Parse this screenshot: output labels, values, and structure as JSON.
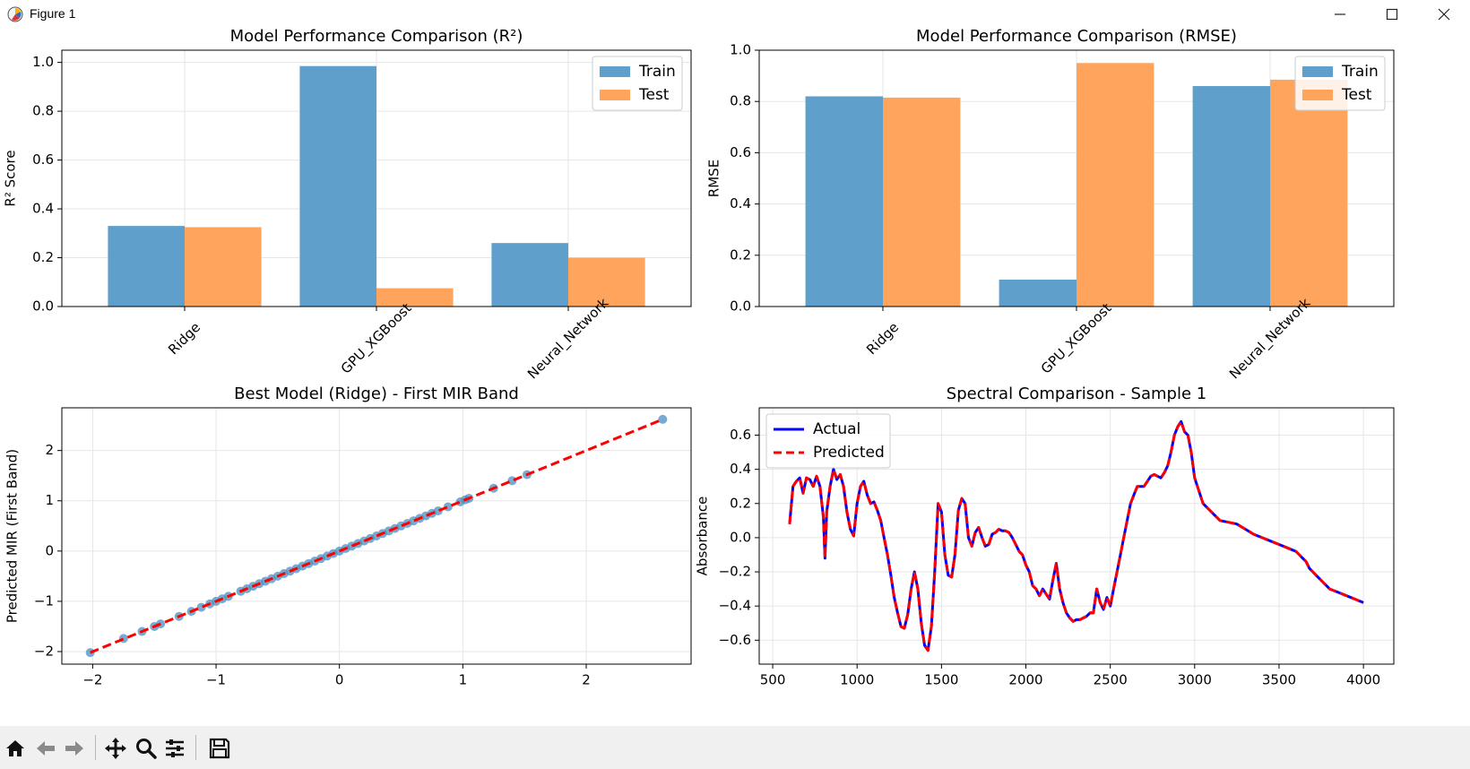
{
  "window": {
    "title": "Figure 1",
    "icon": "matplotlib-icon",
    "controls": [
      "minimize-icon",
      "maximize-icon",
      "close-icon"
    ]
  },
  "toolbar": {
    "buttons": [
      "home-icon",
      "back-icon",
      "forward-icon",
      "pan-icon",
      "zoom-icon",
      "configure-subplots-icon",
      "save-icon"
    ]
  },
  "colors": {
    "train": "#5f9fcb",
    "test": "#fea45c",
    "actual": "#0000ff",
    "predicted": "#ff0000",
    "scatter": "#4a8fc2",
    "grid": "#e6e6e6"
  },
  "chart_data": [
    {
      "type": "bar",
      "title": "Model Performance Comparison (R²)",
      "xlabel": "",
      "ylabel": "R² Score",
      "categories": [
        "Ridge",
        "GPU_XGBoost",
        "Neural_Network"
      ],
      "series": [
        {
          "name": "Train",
          "values": [
            0.33,
            0.985,
            0.26
          ]
        },
        {
          "name": "Test",
          "values": [
            0.325,
            0.075,
            0.2
          ]
        }
      ],
      "ylim": [
        0,
        1.05
      ],
      "yticks": [
        0.0,
        0.2,
        0.4,
        0.6,
        0.8,
        1.0
      ],
      "ytick_labels": [
        "0.0",
        "0.2",
        "0.4",
        "0.6",
        "0.8",
        "1.0"
      ],
      "grid": true,
      "legend": "top-right"
    },
    {
      "type": "bar",
      "title": "Model Performance Comparison (RMSE)",
      "xlabel": "",
      "ylabel": "RMSE",
      "categories": [
        "Ridge",
        "GPU_XGBoost",
        "Neural_Network"
      ],
      "series": [
        {
          "name": "Train",
          "values": [
            0.82,
            0.105,
            0.86
          ]
        },
        {
          "name": "Test",
          "values": [
            0.815,
            0.95,
            0.885
          ]
        }
      ],
      "ylim": [
        0,
        1.0
      ],
      "yticks": [
        0.0,
        0.2,
        0.4,
        0.6,
        0.8,
        1.0
      ],
      "ytick_labels": [
        "0.0",
        "0.2",
        "0.4",
        "0.6",
        "0.8",
        "1.0"
      ],
      "grid": true,
      "legend": "top-right"
    },
    {
      "type": "scatter",
      "title": "Best Model (Ridge) - First MIR Band",
      "xlabel": "",
      "ylabel": "Predicted MIR (First Band)",
      "xlim": [
        -2.25,
        2.85
      ],
      "ylim": [
        -2.25,
        2.85
      ],
      "xticks": [
        -2,
        -1,
        0,
        1,
        2
      ],
      "xtick_labels": [
        "−2",
        "−1",
        "0",
        "1",
        "2"
      ],
      "yticks": [
        -2,
        -1,
        0,
        1,
        2
      ],
      "ytick_labels": [
        "−2",
        "−1",
        "0",
        "1",
        "2"
      ],
      "points": [
        [
          -2.02,
          -2.02
        ],
        [
          -1.75,
          -1.74
        ],
        [
          -1.6,
          -1.6
        ],
        [
          -1.5,
          -1.5
        ],
        [
          -1.45,
          -1.45
        ],
        [
          -1.3,
          -1.3
        ],
        [
          -1.2,
          -1.2
        ],
        [
          -1.12,
          -1.12
        ],
        [
          -1.05,
          -1.05
        ],
        [
          -1.0,
          -1.0
        ],
        [
          -0.95,
          -0.95
        ],
        [
          -0.9,
          -0.9
        ],
        [
          -0.8,
          -0.8
        ],
        [
          -0.75,
          -0.75
        ],
        [
          -0.7,
          -0.7
        ],
        [
          -0.65,
          -0.65
        ],
        [
          -0.6,
          -0.6
        ],
        [
          -0.55,
          -0.55
        ],
        [
          -0.5,
          -0.5
        ],
        [
          -0.45,
          -0.45
        ],
        [
          -0.4,
          -0.4
        ],
        [
          -0.35,
          -0.35
        ],
        [
          -0.3,
          -0.3
        ],
        [
          -0.25,
          -0.25
        ],
        [
          -0.2,
          -0.2
        ],
        [
          -0.15,
          -0.15
        ],
        [
          -0.1,
          -0.1
        ],
        [
          -0.05,
          -0.05
        ],
        [
          0.0,
          0.0
        ],
        [
          0.05,
          0.05
        ],
        [
          0.1,
          0.1
        ],
        [
          0.15,
          0.15
        ],
        [
          0.2,
          0.2
        ],
        [
          0.25,
          0.25
        ],
        [
          0.3,
          0.3
        ],
        [
          0.35,
          0.35
        ],
        [
          0.4,
          0.4
        ],
        [
          0.45,
          0.45
        ],
        [
          0.5,
          0.5
        ],
        [
          0.55,
          0.55
        ],
        [
          0.6,
          0.6
        ],
        [
          0.65,
          0.65
        ],
        [
          0.7,
          0.7
        ],
        [
          0.75,
          0.75
        ],
        [
          0.8,
          0.8
        ],
        [
          0.88,
          0.88
        ],
        [
          0.98,
          0.98
        ],
        [
          1.02,
          1.02
        ],
        [
          1.05,
          1.05
        ],
        [
          1.25,
          1.25
        ],
        [
          1.4,
          1.4
        ],
        [
          1.52,
          1.52
        ],
        [
          2.62,
          2.62
        ]
      ],
      "reference_line": {
        "x": [
          -2.02,
          2.62
        ],
        "y": [
          -2.02,
          2.62
        ],
        "style": "dashed",
        "color": "#ff0000"
      },
      "grid": true
    },
    {
      "type": "line",
      "title": "Spectral Comparison - Sample 1",
      "xlabel": "",
      "ylabel": "Absorbance",
      "xlim": [
        420,
        4180
      ],
      "ylim": [
        -0.74,
        0.76
      ],
      "xticks": [
        500,
        1000,
        1500,
        2000,
        2500,
        3000,
        3500,
        4000
      ],
      "xtick_labels": [
        "500",
        "1000",
        "1500",
        "2000",
        "2500",
        "3000",
        "3500",
        "4000"
      ],
      "yticks": [
        -0.6,
        -0.4,
        -0.2,
        0.0,
        0.2,
        0.4,
        0.6
      ],
      "ytick_labels": [
        "−0.6",
        "−0.4",
        "−0.2",
        "0.0",
        "0.2",
        "0.4",
        "0.6"
      ],
      "x": [
        600,
        620,
        640,
        660,
        680,
        700,
        720,
        740,
        760,
        780,
        800,
        810,
        820,
        840,
        860,
        880,
        900,
        920,
        940,
        960,
        980,
        1000,
        1020,
        1040,
        1060,
        1080,
        1100,
        1120,
        1140,
        1160,
        1180,
        1200,
        1220,
        1240,
        1260,
        1280,
        1300,
        1320,
        1340,
        1360,
        1380,
        1400,
        1420,
        1440,
        1460,
        1480,
        1500,
        1520,
        1540,
        1560,
        1580,
        1600,
        1620,
        1640,
        1660,
        1680,
        1700,
        1720,
        1740,
        1760,
        1780,
        1800,
        1820,
        1840,
        1860,
        1880,
        1900,
        1920,
        1940,
        1960,
        1980,
        2000,
        2020,
        2040,
        2060,
        2080,
        2100,
        2120,
        2140,
        2160,
        2180,
        2200,
        2220,
        2240,
        2260,
        2280,
        2300,
        2320,
        2340,
        2360,
        2380,
        2400,
        2420,
        2440,
        2460,
        2480,
        2500,
        2520,
        2540,
        2560,
        2580,
        2600,
        2620,
        2640,
        2660,
        2680,
        2700,
        2720,
        2740,
        2760,
        2780,
        2800,
        2820,
        2840,
        2860,
        2880,
        2900,
        2920,
        2940,
        2960,
        2980,
        3000,
        3050,
        3100,
        3150,
        3200,
        3250,
        3300,
        3350,
        3400,
        3450,
        3500,
        3550,
        3600,
        3620,
        3640,
        3660,
        3670,
        3680,
        3700,
        3720,
        3740,
        3760,
        3780,
        3800,
        3850,
        3900,
        3950,
        4000
      ],
      "series": [
        {
          "name": "Actual",
          "style": "solid",
          "values": [
            0.08,
            0.3,
            0.33,
            0.35,
            0.26,
            0.35,
            0.34,
            0.3,
            0.36,
            0.3,
            0.12,
            -0.12,
            0.15,
            0.3,
            0.4,
            0.34,
            0.37,
            0.3,
            0.15,
            0.05,
            0.01,
            0.2,
            0.3,
            0.33,
            0.25,
            0.2,
            0.21,
            0.16,
            0.1,
            0.0,
            -0.1,
            -0.22,
            -0.35,
            -0.44,
            -0.52,
            -0.53,
            -0.45,
            -0.3,
            -0.2,
            -0.3,
            -0.5,
            -0.63,
            -0.66,
            -0.52,
            -0.2,
            0.2,
            0.15,
            -0.1,
            -0.22,
            -0.23,
            -0.1,
            0.16,
            0.23,
            0.2,
            0.0,
            -0.05,
            0.03,
            0.06,
            0.0,
            -0.05,
            -0.04,
            0.02,
            0.03,
            0.05,
            0.04,
            0.04,
            0.03,
            0.0,
            -0.04,
            -0.08,
            -0.1,
            -0.16,
            -0.2,
            -0.28,
            -0.3,
            -0.34,
            -0.3,
            -0.33,
            -0.36,
            -0.25,
            -0.15,
            -0.3,
            -0.38,
            -0.44,
            -0.47,
            -0.49,
            -0.48,
            -0.48,
            -0.47,
            -0.46,
            -0.44,
            -0.44,
            -0.3,
            -0.38,
            -0.42,
            -0.35,
            -0.4,
            -0.3,
            -0.2,
            -0.1,
            0.0,
            0.1,
            0.2,
            0.25,
            0.3,
            0.3,
            0.3,
            0.33,
            0.36,
            0.37,
            0.36,
            0.35,
            0.38,
            0.42,
            0.5,
            0.6,
            0.65,
            0.68,
            0.62,
            0.6,
            0.5,
            0.35,
            0.2,
            0.15,
            0.1,
            0.09,
            0.08,
            0.05,
            0.02,
            0.0,
            -0.02,
            -0.04,
            -0.06,
            -0.08,
            -0.1,
            -0.12,
            -0.14,
            -0.16,
            -0.18,
            -0.2,
            -0.22,
            -0.24,
            -0.26,
            -0.28,
            -0.3,
            -0.32,
            -0.34,
            -0.36,
            -0.38
          ]
        },
        {
          "name": "Predicted",
          "style": "dashed",
          "values": [
            0.08,
            0.3,
            0.33,
            0.35,
            0.26,
            0.35,
            0.34,
            0.3,
            0.36,
            0.3,
            0.12,
            -0.12,
            0.15,
            0.3,
            0.4,
            0.34,
            0.37,
            0.3,
            0.15,
            0.05,
            0.01,
            0.2,
            0.3,
            0.33,
            0.25,
            0.2,
            0.21,
            0.16,
            0.1,
            0.0,
            -0.1,
            -0.22,
            -0.35,
            -0.44,
            -0.52,
            -0.53,
            -0.45,
            -0.3,
            -0.2,
            -0.3,
            -0.5,
            -0.63,
            -0.66,
            -0.52,
            -0.2,
            0.2,
            0.15,
            -0.1,
            -0.22,
            -0.23,
            -0.1,
            0.16,
            0.23,
            0.2,
            0.0,
            -0.05,
            0.03,
            0.06,
            0.0,
            -0.05,
            -0.04,
            0.02,
            0.03,
            0.05,
            0.04,
            0.04,
            0.03,
            0.0,
            -0.04,
            -0.08,
            -0.1,
            -0.16,
            -0.2,
            -0.28,
            -0.3,
            -0.34,
            -0.3,
            -0.33,
            -0.36,
            -0.25,
            -0.15,
            -0.3,
            -0.38,
            -0.44,
            -0.47,
            -0.49,
            -0.48,
            -0.48,
            -0.47,
            -0.46,
            -0.44,
            -0.44,
            -0.3,
            -0.38,
            -0.42,
            -0.35,
            -0.4,
            -0.3,
            -0.2,
            -0.1,
            0.0,
            0.1,
            0.2,
            0.25,
            0.3,
            0.3,
            0.3,
            0.33,
            0.36,
            0.37,
            0.36,
            0.35,
            0.38,
            0.42,
            0.5,
            0.6,
            0.65,
            0.68,
            0.62,
            0.6,
            0.5,
            0.35,
            0.2,
            0.15,
            0.1,
            0.09,
            0.08,
            0.05,
            0.02,
            0.0,
            -0.02,
            -0.04,
            -0.06,
            -0.08,
            -0.1,
            -0.12,
            -0.14,
            -0.16,
            -0.18,
            -0.2,
            -0.22,
            -0.24,
            -0.26,
            -0.28,
            -0.3,
            -0.32,
            -0.34,
            -0.36,
            -0.38
          ]
        }
      ],
      "grid": true,
      "legend": "top-left"
    }
  ]
}
